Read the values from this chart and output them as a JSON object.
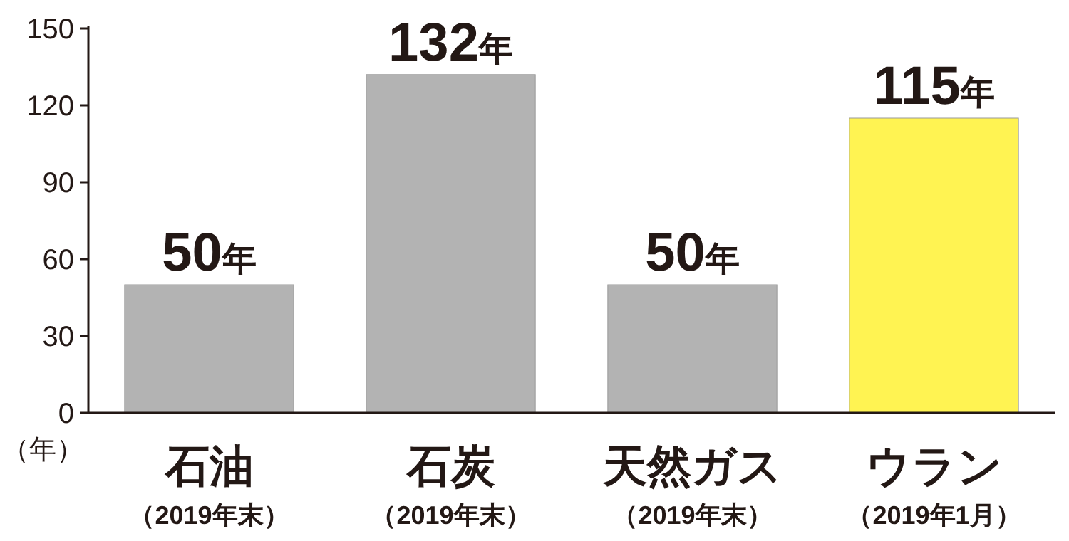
{
  "chart_data": {
    "type": "bar",
    "ylabel": "（年）",
    "categories": [
      "石油（2019年末）",
      "石炭（2019年末）",
      "天然ガス（2019年末）",
      "ウラン（2019年1月）"
    ],
    "values": [
      50,
      132,
      50,
      115
    ],
    "colors": [
      "#b3b3b3",
      "#b3b3b3",
      "#b3b3b3",
      "#fff352"
    ],
    "value_labels": [
      "50年",
      "132年",
      "50年",
      "115年"
    ],
    "ylim": [
      0,
      150
    ],
    "yticks": [
      0,
      30,
      60,
      90,
      120,
      150
    ],
    "grid": false
  }
}
